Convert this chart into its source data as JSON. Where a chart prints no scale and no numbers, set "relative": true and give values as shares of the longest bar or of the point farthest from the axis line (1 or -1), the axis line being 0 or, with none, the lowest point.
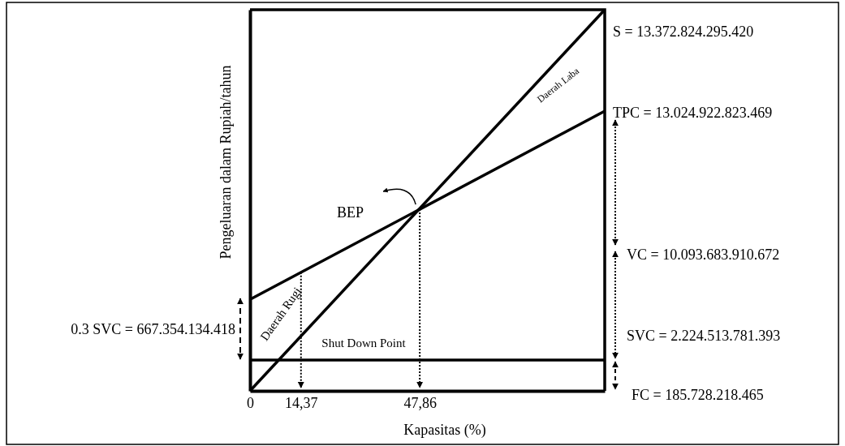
{
  "chart_data": {
    "type": "line",
    "relative": true,
    "xlabel": "Kapasitas (%)",
    "ylabel": "Pengeluaran dalam Rupiah/tahun",
    "xlim": [
      0,
      100
    ],
    "x": [
      0,
      100
    ],
    "xticks": [
      0,
      {
        "value": 14.37,
        "label": "14,37"
      },
      {
        "value": 47.86,
        "label": "47,86"
      }
    ],
    "series": [
      {
        "color": "#000000",
        "values": [
          0,
          1
        ]
      },
      {
        "color": "#000000",
        "values": [
          0.24,
          0.734
        ]
      },
      {
        "color": "#000000",
        "values": [
          0.081,
          0.081
        ]
      }
    ],
    "annotations": [
      {
        "text": "S = 13.372.824.295.420",
        "x": 100,
        "y": 1
      },
      {
        "text": "TPC = 13.024.922.823.469",
        "x": 100,
        "y": 0.734
      },
      "VC = 10.093.683.910.672",
      "SVC = 2.224.513.781.393",
      "FC = 185.728.218.465",
      "0.3 SVC = 667.354.134.418",
      "BEP",
      "Daerah Laba",
      "Daerah Rugi",
      "Shut Down Point"
    ]
  }
}
